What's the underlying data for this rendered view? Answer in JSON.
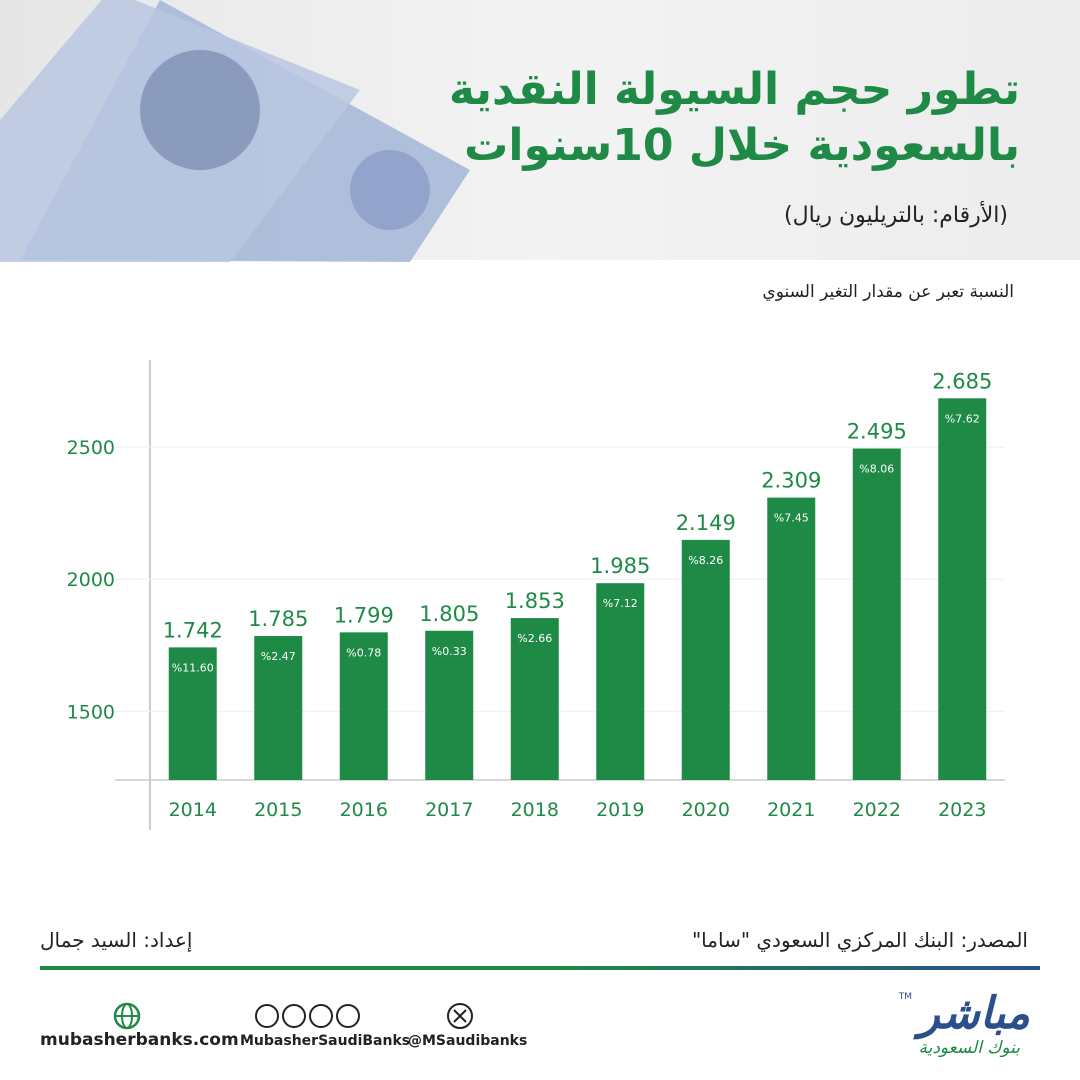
{
  "chart_data": {
    "type": "bar",
    "title": [
      "تطور حجم السيولة النقدية",
      "بالسعودية خلال 10سنوات"
    ],
    "subtitle": "(الأرقام: بالتريليون ريال)",
    "note": "النسبة تعبر عن مقدار التغير السنوي",
    "categories": [
      "2014",
      "2015",
      "2016",
      "2017",
      "2018",
      "2019",
      "2020",
      "2021",
      "2022",
      "2023"
    ],
    "values": [
      1742,
      1785,
      1799,
      1805,
      1853,
      1985,
      2149,
      2309,
      2495,
      2685
    ],
    "value_labels": [
      "1.742",
      "1.785",
      "1.799",
      "1.805",
      "1.853",
      "1.985",
      "2.149",
      "2.309",
      "2.495",
      "2.685"
    ],
    "change_labels": [
      "%11.60",
      "%2.47",
      "%0.78",
      "%0.33",
      "%2.66",
      "%7.12",
      "%8.26",
      "%7.45",
      "%8.06",
      "%7.62"
    ],
    "color": "#1e8a45",
    "ylim": [
      1240,
      2830
    ],
    "yticks": [
      1500,
      2000,
      2500
    ],
    "grid": true
  },
  "footer": {
    "source": "المصدر: البنك المركزي السعودي \"ساما\"",
    "prepared_by": "إعداد: السيد جمال",
    "website": "mubasherbanks.com",
    "social_handle": "MubasherSaudiBanks",
    "x_handle": "@MSaudibanks",
    "logo": "مباشر",
    "logo_sub": "بنوك السعودية",
    "trademark": "TM"
  }
}
